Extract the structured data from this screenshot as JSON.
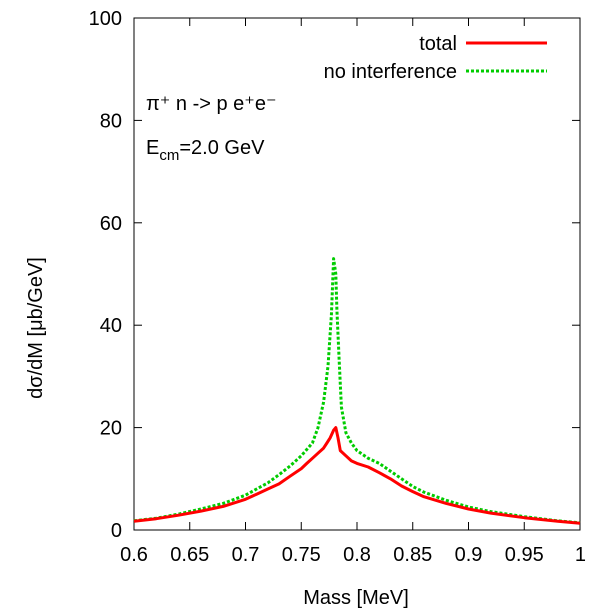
{
  "chart_data": {
    "type": "line",
    "xlabel": "Mass [MeV]",
    "ylabel": "dσ/dM [μb/GeV]",
    "xlim": [
      0.6,
      1.0
    ],
    "ylim": [
      0,
      100
    ],
    "xticks": [
      "0.6",
      "0.65",
      "0.7",
      "0.75",
      "0.8",
      "0.85",
      "0.9",
      "0.95",
      "1"
    ],
    "yticks": [
      "0",
      "20",
      "40",
      "60",
      "80",
      "100"
    ],
    "xtick_values": [
      0.6,
      0.65,
      0.7,
      0.75,
      0.8,
      0.85,
      0.9,
      0.95,
      1.0
    ],
    "ytick_values": [
      0,
      20,
      40,
      60,
      80,
      100
    ],
    "grid": false,
    "legend_position": "top-right",
    "annotations": {
      "reaction": "π⁺ n -> p e⁺e⁻",
      "energy": "E_cm=2.0 GeV"
    },
    "series": [
      {
        "name": "total",
        "color": "#ff0000",
        "style": "solid",
        "x": [
          0.6,
          0.62,
          0.64,
          0.66,
          0.68,
          0.7,
          0.71,
          0.72,
          0.73,
          0.74,
          0.75,
          0.755,
          0.76,
          0.765,
          0.77,
          0.773,
          0.776,
          0.779,
          0.781,
          0.783,
          0.785,
          0.79,
          0.795,
          0.8,
          0.81,
          0.82,
          0.83,
          0.84,
          0.85,
          0.86,
          0.88,
          0.9,
          0.92,
          0.95,
          0.98,
          1.0
        ],
        "y": [
          1.7,
          2.2,
          2.9,
          3.7,
          4.6,
          6.0,
          7.0,
          8.0,
          9.0,
          10.5,
          12.0,
          13.0,
          14.0,
          15.0,
          16.0,
          17.0,
          18.0,
          19.5,
          20.0,
          18.0,
          15.5,
          14.5,
          13.5,
          13.0,
          12.3,
          11.2,
          10.0,
          8.6,
          7.5,
          6.5,
          5.2,
          4.1,
          3.3,
          2.4,
          1.7,
          1.3
        ]
      },
      {
        "name": "no interference",
        "color": "#00cc00",
        "style": "dotted",
        "x": [
          0.6,
          0.62,
          0.64,
          0.66,
          0.68,
          0.7,
          0.71,
          0.72,
          0.73,
          0.74,
          0.75,
          0.76,
          0.765,
          0.77,
          0.774,
          0.777,
          0.779,
          0.781,
          0.782,
          0.784,
          0.786,
          0.79,
          0.795,
          0.8,
          0.81,
          0.82,
          0.83,
          0.84,
          0.85,
          0.86,
          0.88,
          0.9,
          0.92,
          0.95,
          0.98,
          1.0
        ],
        "y": [
          1.8,
          2.3,
          3.1,
          4.1,
          5.2,
          6.8,
          8.0,
          9.2,
          10.8,
          12.5,
          14.5,
          17.0,
          20.0,
          25.0,
          32.0,
          42.0,
          53.0,
          50.0,
          43.0,
          33.0,
          24.0,
          19.0,
          17.0,
          15.5,
          14.0,
          13.0,
          11.5,
          10.0,
          8.5,
          7.4,
          5.8,
          4.5,
          3.6,
          2.6,
          1.8,
          1.4
        ]
      }
    ]
  }
}
